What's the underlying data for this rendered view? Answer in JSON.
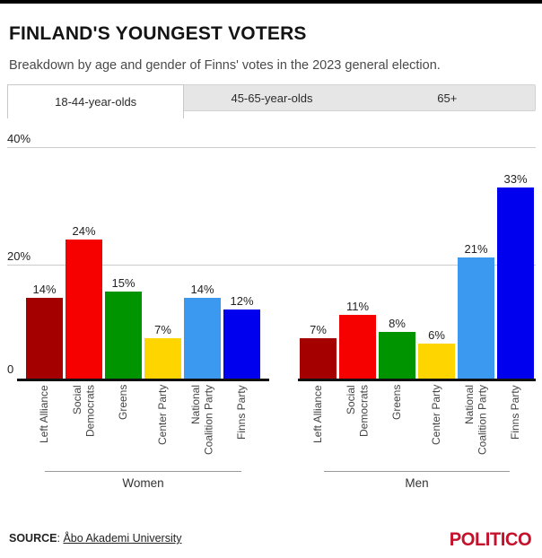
{
  "header": {
    "title": "FINLAND'S YOUNGEST VOTERS",
    "subtitle": "Breakdown by age and gender of Finns' votes in the 2023 general election."
  },
  "tabs": [
    {
      "label": "18-44-year-olds",
      "active": true
    },
    {
      "label": "45-65-year-olds",
      "active": false
    },
    {
      "label": "65+",
      "active": false
    }
  ],
  "chart_data": {
    "type": "bar",
    "title": "FINLAND'S YOUNGEST VOTERS",
    "subtitle": "Breakdown by age and gender of Finns' votes in the 2023 general election.",
    "categories": [
      "Left Alliance",
      "Social Democrats",
      "Greens",
      "Center Party",
      "National Coalition Party",
      "Finns Party"
    ],
    "category_lines": [
      [
        "Left Alliance"
      ],
      [
        "Social",
        "Democrats"
      ],
      [
        "Greens"
      ],
      [
        "Center Party"
      ],
      [
        "National",
        "Coalition Party"
      ],
      [
        "Finns Party"
      ]
    ],
    "series": [
      {
        "name": "Women",
        "values": [
          14,
          24,
          15,
          7,
          14,
          12
        ]
      },
      {
        "name": "Men",
        "values": [
          7,
          11,
          8,
          6,
          21,
          33
        ]
      }
    ],
    "colors": [
      "#a40000",
      "#f70000",
      "#009400",
      "#ffd500",
      "#3b99f0",
      "#0000ee"
    ],
    "value_suffix": "%",
    "yticks": [
      "40%",
      "20%",
      "0"
    ],
    "ylim": [
      0,
      40
    ],
    "grid": true,
    "legend_position": "none"
  },
  "footer": {
    "source_label": "SOURCE",
    "source_separator": ": ",
    "source_link": "Åbo Akademi University",
    "brand": "POLITICO"
  }
}
